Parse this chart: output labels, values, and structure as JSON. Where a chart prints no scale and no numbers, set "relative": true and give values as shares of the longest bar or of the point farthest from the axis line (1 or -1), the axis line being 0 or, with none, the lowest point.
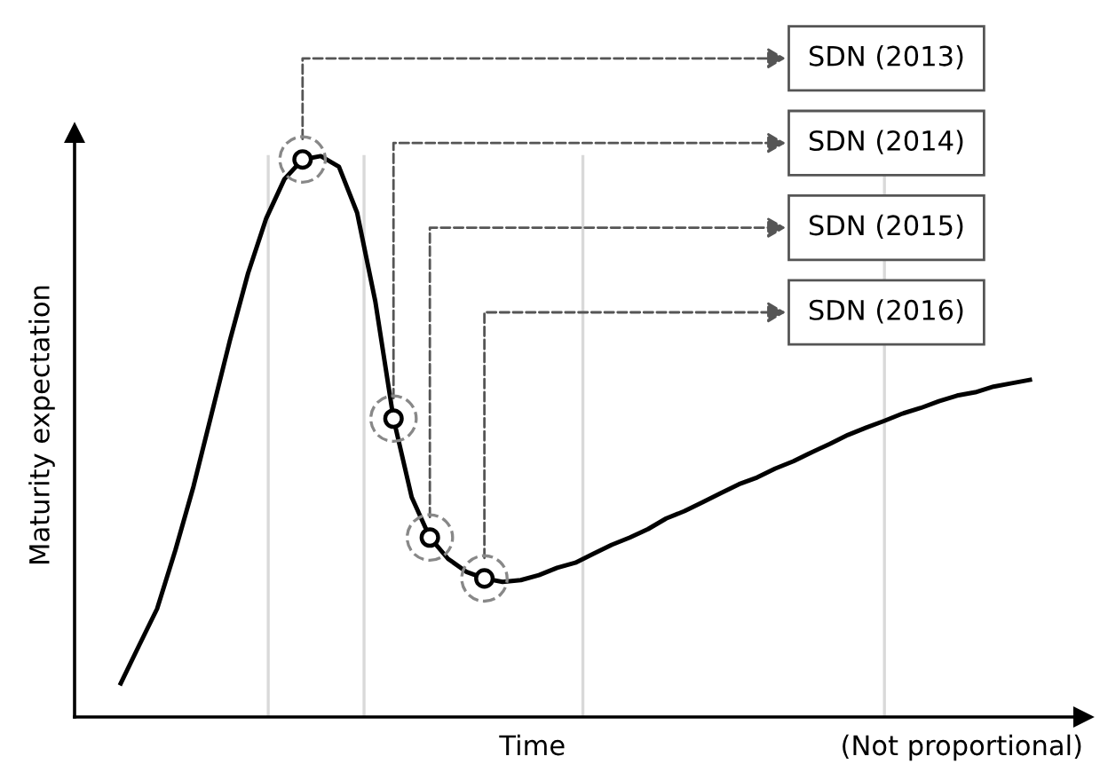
{
  "chart_data": {
    "type": "line",
    "relative": true,
    "xlabel": "Time",
    "ylabel": "Maturity expectation",
    "categories": [
      null,
      null,
      null,
      null,
      null,
      null,
      null,
      null,
      null,
      null,
      null,
      null,
      null,
      null,
      null,
      null,
      null,
      null,
      null,
      null,
      null,
      null,
      null,
      null,
      null,
      null,
      null,
      null,
      null,
      null,
      null,
      null,
      null,
      null,
      null,
      null,
      null,
      null,
      null,
      null,
      null,
      null,
      null,
      null,
      null,
      null,
      null,
      null,
      null,
      null,
      null
    ],
    "series": [
      {
        "color": "#000000",
        "values": [
          0.06,
          0.127,
          0.193,
          0.297,
          0.411,
          0.541,
          0.671,
          0.791,
          0.889,
          0.959,
          0.994,
          1.0,
          0.981,
          0.899,
          0.741,
          0.532,
          0.392,
          0.32,
          0.282,
          0.259,
          0.247,
          0.241,
          0.244,
          0.253,
          0.266,
          0.275,
          0.291,
          0.307,
          0.32,
          0.335,
          0.354,
          0.367,
          0.383,
          0.399,
          0.415,
          0.427,
          0.443,
          0.456,
          0.472,
          0.487,
          0.503,
          0.516,
          0.528,
          0.541,
          0.551,
          0.563,
          0.573,
          0.579,
          0.589,
          0.595,
          0.601
        ]
      }
    ],
    "annotations": [
      "SDN (2013)",
      "SDN (2014)",
      "SDN (2015)",
      "SDN (2016)",
      "(Not proportional)"
    ]
  }
}
